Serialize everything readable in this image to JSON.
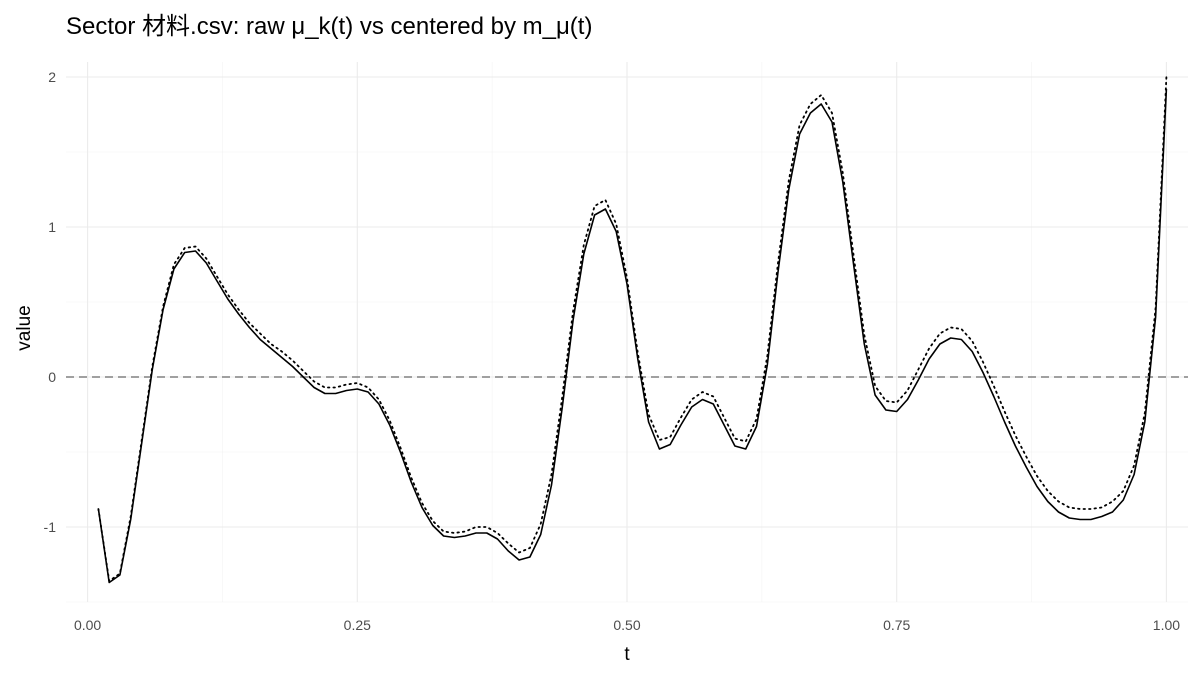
{
  "chart_data": {
    "type": "line",
    "title": "Sector 材料.csv: raw μ_k(t) vs centered by m_μ(t)",
    "xlabel": "t",
    "ylabel": "value",
    "xlim": [
      -0.02,
      1.02
    ],
    "ylim": [
      -1.5,
      2.1
    ],
    "x_ticks": [
      0.0,
      0.25,
      0.5,
      0.75,
      1.0
    ],
    "x_tick_labels": [
      "0.00",
      "0.25",
      "0.50",
      "0.75",
      "1.00"
    ],
    "y_ticks": [
      -1,
      0,
      1,
      2
    ],
    "y_tick_labels": [
      "-1",
      "0",
      "1",
      "2"
    ],
    "grid": true,
    "legend": "none",
    "reference_line": {
      "y": 0,
      "style": "dashed",
      "color": "#808080"
    },
    "series": [
      {
        "style": "solid",
        "color": "#000000",
        "points": [
          [
            0.01,
            -0.88
          ],
          [
            0.02,
            -1.37
          ],
          [
            0.03,
            -1.32
          ],
          [
            0.04,
            -0.95
          ],
          [
            0.05,
            -0.45
          ],
          [
            0.06,
            0.05
          ],
          [
            0.07,
            0.45
          ],
          [
            0.08,
            0.72
          ],
          [
            0.09,
            0.83
          ],
          [
            0.1,
            0.84
          ],
          [
            0.11,
            0.76
          ],
          [
            0.12,
            0.64
          ],
          [
            0.13,
            0.52
          ],
          [
            0.14,
            0.42
          ],
          [
            0.15,
            0.33
          ],
          [
            0.16,
            0.25
          ],
          [
            0.17,
            0.19
          ],
          [
            0.18,
            0.13
          ],
          [
            0.19,
            0.07
          ],
          [
            0.2,
            0.0
          ],
          [
            0.21,
            -0.07
          ],
          [
            0.22,
            -0.11
          ],
          [
            0.23,
            -0.11
          ],
          [
            0.24,
            -0.09
          ],
          [
            0.25,
            -0.08
          ],
          [
            0.26,
            -0.1
          ],
          [
            0.27,
            -0.18
          ],
          [
            0.28,
            -0.32
          ],
          [
            0.29,
            -0.5
          ],
          [
            0.3,
            -0.7
          ],
          [
            0.31,
            -0.87
          ],
          [
            0.32,
            -0.99
          ],
          [
            0.33,
            -1.06
          ],
          [
            0.34,
            -1.07
          ],
          [
            0.35,
            -1.06
          ],
          [
            0.36,
            -1.04
          ],
          [
            0.37,
            -1.04
          ],
          [
            0.38,
            -1.08
          ],
          [
            0.39,
            -1.16
          ],
          [
            0.4,
            -1.22
          ],
          [
            0.41,
            -1.2
          ],
          [
            0.42,
            -1.05
          ],
          [
            0.43,
            -0.72
          ],
          [
            0.44,
            -0.2
          ],
          [
            0.45,
            0.38
          ],
          [
            0.46,
            0.82
          ],
          [
            0.47,
            1.08
          ],
          [
            0.48,
            1.12
          ],
          [
            0.49,
            0.97
          ],
          [
            0.5,
            0.62
          ],
          [
            0.51,
            0.12
          ],
          [
            0.52,
            -0.3
          ],
          [
            0.53,
            -0.48
          ],
          [
            0.54,
            -0.45
          ],
          [
            0.55,
            -0.32
          ],
          [
            0.56,
            -0.2
          ],
          [
            0.57,
            -0.15
          ],
          [
            0.58,
            -0.18
          ],
          [
            0.59,
            -0.32
          ],
          [
            0.6,
            -0.46
          ],
          [
            0.61,
            -0.48
          ],
          [
            0.62,
            -0.33
          ],
          [
            0.63,
            0.08
          ],
          [
            0.64,
            0.7
          ],
          [
            0.65,
            1.25
          ],
          [
            0.66,
            1.62
          ],
          [
            0.67,
            1.76
          ],
          [
            0.68,
            1.82
          ],
          [
            0.69,
            1.7
          ],
          [
            0.7,
            1.3
          ],
          [
            0.71,
            0.75
          ],
          [
            0.72,
            0.22
          ],
          [
            0.73,
            -0.12
          ],
          [
            0.74,
            -0.22
          ],
          [
            0.75,
            -0.23
          ],
          [
            0.76,
            -0.15
          ],
          [
            0.77,
            -0.02
          ],
          [
            0.78,
            0.12
          ],
          [
            0.79,
            0.22
          ],
          [
            0.8,
            0.26
          ],
          [
            0.81,
            0.25
          ],
          [
            0.82,
            0.17
          ],
          [
            0.83,
            0.03
          ],
          [
            0.84,
            -0.13
          ],
          [
            0.85,
            -0.3
          ],
          [
            0.86,
            -0.46
          ],
          [
            0.87,
            -0.6
          ],
          [
            0.88,
            -0.73
          ],
          [
            0.89,
            -0.83
          ],
          [
            0.9,
            -0.9
          ],
          [
            0.91,
            -0.94
          ],
          [
            0.92,
            -0.95
          ],
          [
            0.93,
            -0.95
          ],
          [
            0.94,
            -0.93
          ],
          [
            0.95,
            -0.9
          ],
          [
            0.96,
            -0.82
          ],
          [
            0.97,
            -0.65
          ],
          [
            0.98,
            -0.3
          ],
          [
            0.99,
            0.4
          ],
          [
            1.0,
            1.92
          ]
        ]
      },
      {
        "style": "dotted",
        "color": "#000000",
        "points": [
          [
            0.01,
            -0.88
          ],
          [
            0.02,
            -1.36
          ],
          [
            0.03,
            -1.31
          ],
          [
            0.04,
            -0.93
          ],
          [
            0.05,
            -0.43
          ],
          [
            0.06,
            0.07
          ],
          [
            0.07,
            0.47
          ],
          [
            0.08,
            0.75
          ],
          [
            0.09,
            0.86
          ],
          [
            0.1,
            0.87
          ],
          [
            0.11,
            0.79
          ],
          [
            0.12,
            0.67
          ],
          [
            0.13,
            0.55
          ],
          [
            0.14,
            0.45
          ],
          [
            0.15,
            0.36
          ],
          [
            0.16,
            0.29
          ],
          [
            0.17,
            0.22
          ],
          [
            0.18,
            0.17
          ],
          [
            0.19,
            0.11
          ],
          [
            0.2,
            0.04
          ],
          [
            0.21,
            -0.03
          ],
          [
            0.22,
            -0.07
          ],
          [
            0.23,
            -0.07
          ],
          [
            0.24,
            -0.05
          ],
          [
            0.25,
            -0.04
          ],
          [
            0.26,
            -0.07
          ],
          [
            0.27,
            -0.15
          ],
          [
            0.28,
            -0.29
          ],
          [
            0.29,
            -0.47
          ],
          [
            0.3,
            -0.67
          ],
          [
            0.31,
            -0.84
          ],
          [
            0.32,
            -0.96
          ],
          [
            0.33,
            -1.03
          ],
          [
            0.34,
            -1.04
          ],
          [
            0.35,
            -1.03
          ],
          [
            0.36,
            -1.0
          ],
          [
            0.37,
            -1.0
          ],
          [
            0.38,
            -1.04
          ],
          [
            0.39,
            -1.11
          ],
          [
            0.4,
            -1.17
          ],
          [
            0.41,
            -1.14
          ],
          [
            0.42,
            -0.98
          ],
          [
            0.43,
            -0.65
          ],
          [
            0.44,
            -0.13
          ],
          [
            0.45,
            0.44
          ],
          [
            0.46,
            0.88
          ],
          [
            0.47,
            1.14
          ],
          [
            0.48,
            1.18
          ],
          [
            0.49,
            1.02
          ],
          [
            0.5,
            0.66
          ],
          [
            0.51,
            0.16
          ],
          [
            0.52,
            -0.25
          ],
          [
            0.53,
            -0.42
          ],
          [
            0.54,
            -0.4
          ],
          [
            0.55,
            -0.27
          ],
          [
            0.56,
            -0.15
          ],
          [
            0.57,
            -0.1
          ],
          [
            0.58,
            -0.13
          ],
          [
            0.59,
            -0.27
          ],
          [
            0.6,
            -0.41
          ],
          [
            0.61,
            -0.43
          ],
          [
            0.62,
            -0.28
          ],
          [
            0.63,
            0.14
          ],
          [
            0.64,
            0.76
          ],
          [
            0.65,
            1.31
          ],
          [
            0.66,
            1.68
          ],
          [
            0.67,
            1.82
          ],
          [
            0.68,
            1.88
          ],
          [
            0.69,
            1.76
          ],
          [
            0.7,
            1.36
          ],
          [
            0.71,
            0.81
          ],
          [
            0.72,
            0.28
          ],
          [
            0.73,
            -0.06
          ],
          [
            0.74,
            -0.16
          ],
          [
            0.75,
            -0.17
          ],
          [
            0.76,
            -0.09
          ],
          [
            0.77,
            0.05
          ],
          [
            0.78,
            0.19
          ],
          [
            0.79,
            0.29
          ],
          [
            0.8,
            0.33
          ],
          [
            0.81,
            0.32
          ],
          [
            0.82,
            0.24
          ],
          [
            0.83,
            0.1
          ],
          [
            0.84,
            -0.06
          ],
          [
            0.85,
            -0.23
          ],
          [
            0.86,
            -0.39
          ],
          [
            0.87,
            -0.53
          ],
          [
            0.88,
            -0.66
          ],
          [
            0.89,
            -0.76
          ],
          [
            0.9,
            -0.83
          ],
          [
            0.91,
            -0.87
          ],
          [
            0.92,
            -0.88
          ],
          [
            0.93,
            -0.88
          ],
          [
            0.94,
            -0.87
          ],
          [
            0.95,
            -0.83
          ],
          [
            0.96,
            -0.76
          ],
          [
            0.97,
            -0.59
          ],
          [
            0.98,
            -0.24
          ],
          [
            0.99,
            0.46
          ],
          [
            1.0,
            2.0
          ]
        ]
      }
    ]
  }
}
